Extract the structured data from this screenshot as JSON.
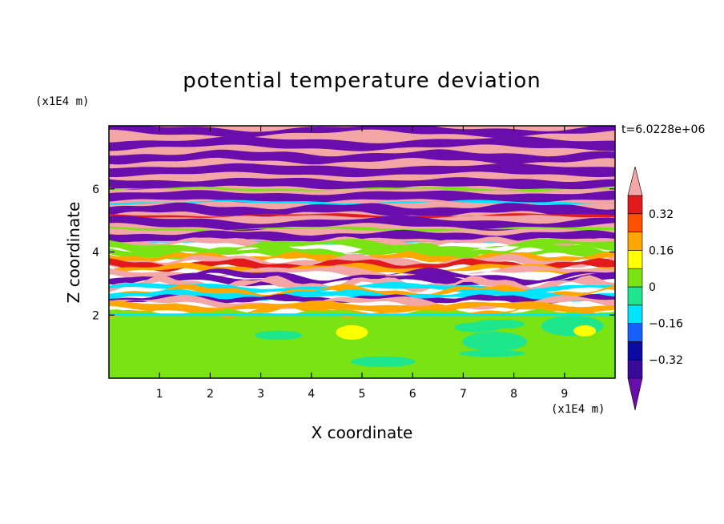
{
  "title": "potential temperature deviation",
  "time_label": "t=6.0228e+06",
  "chart_data": {
    "type": "heatmap",
    "title": "potential temperature deviation",
    "xlabel": "X coordinate",
    "ylabel": "Z coordinate",
    "x_unit": "(x1E4 m)",
    "z_unit": "(x1E4 m)",
    "xlim": [
      0,
      10
    ],
    "ylim": [
      0,
      8
    ],
    "x_ticks": [
      "1",
      "2",
      "3",
      "4",
      "5",
      "6",
      "7",
      "8",
      "9"
    ],
    "y_ticks": [
      "2",
      "4",
      "6"
    ],
    "x_tick_values": [
      1,
      2,
      3,
      4,
      5,
      6,
      7,
      8,
      9
    ],
    "y_tick_values": [
      2,
      4,
      6
    ],
    "colorbar": {
      "levels": [
        -0.48,
        -0.4,
        -0.32,
        -0.24,
        -0.16,
        -0.08,
        0,
        0.08,
        0.16,
        0.24,
        0.32,
        0.4
      ],
      "colors": [
        "#6a0dad",
        "#3a0a9a",
        "#0a0aa5",
        "#1560ff",
        "#00e5ff",
        "#1ee68c",
        "#7ae314",
        "#ffff00",
        "#ffa600",
        "#ff5000",
        "#e31a1c",
        "#f4a6a6"
      ],
      "tick_labels": [
        "0.32",
        "0.16",
        "0",
        "−0.16",
        "−0.32"
      ],
      "tick_values": [
        0.32,
        0.16,
        0,
        -0.16,
        -0.32
      ],
      "extend": "both"
    },
    "field_bands": [
      {
        "z_range": [
          6.0,
          8.0
        ],
        "pattern": "alternating",
        "values": [
          -0.48,
          0.4
        ]
      },
      {
        "z_range": [
          4.3,
          6.0
        ],
        "pattern": "alternating with thin gradient edges",
        "values": [
          -0.48,
          0.4
        ]
      },
      {
        "z_range": [
          2.0,
          4.3
        ],
        "pattern": "mixed turbulent layers",
        "values": [
          -0.48,
          -0.16,
          0,
          0.16,
          0.32,
          0.4
        ]
      },
      {
        "z_range": [
          0.0,
          2.0
        ],
        "pattern": "near-neutral boundary layer",
        "values": [
          -0.08,
          0,
          0.08
        ]
      }
    ]
  }
}
